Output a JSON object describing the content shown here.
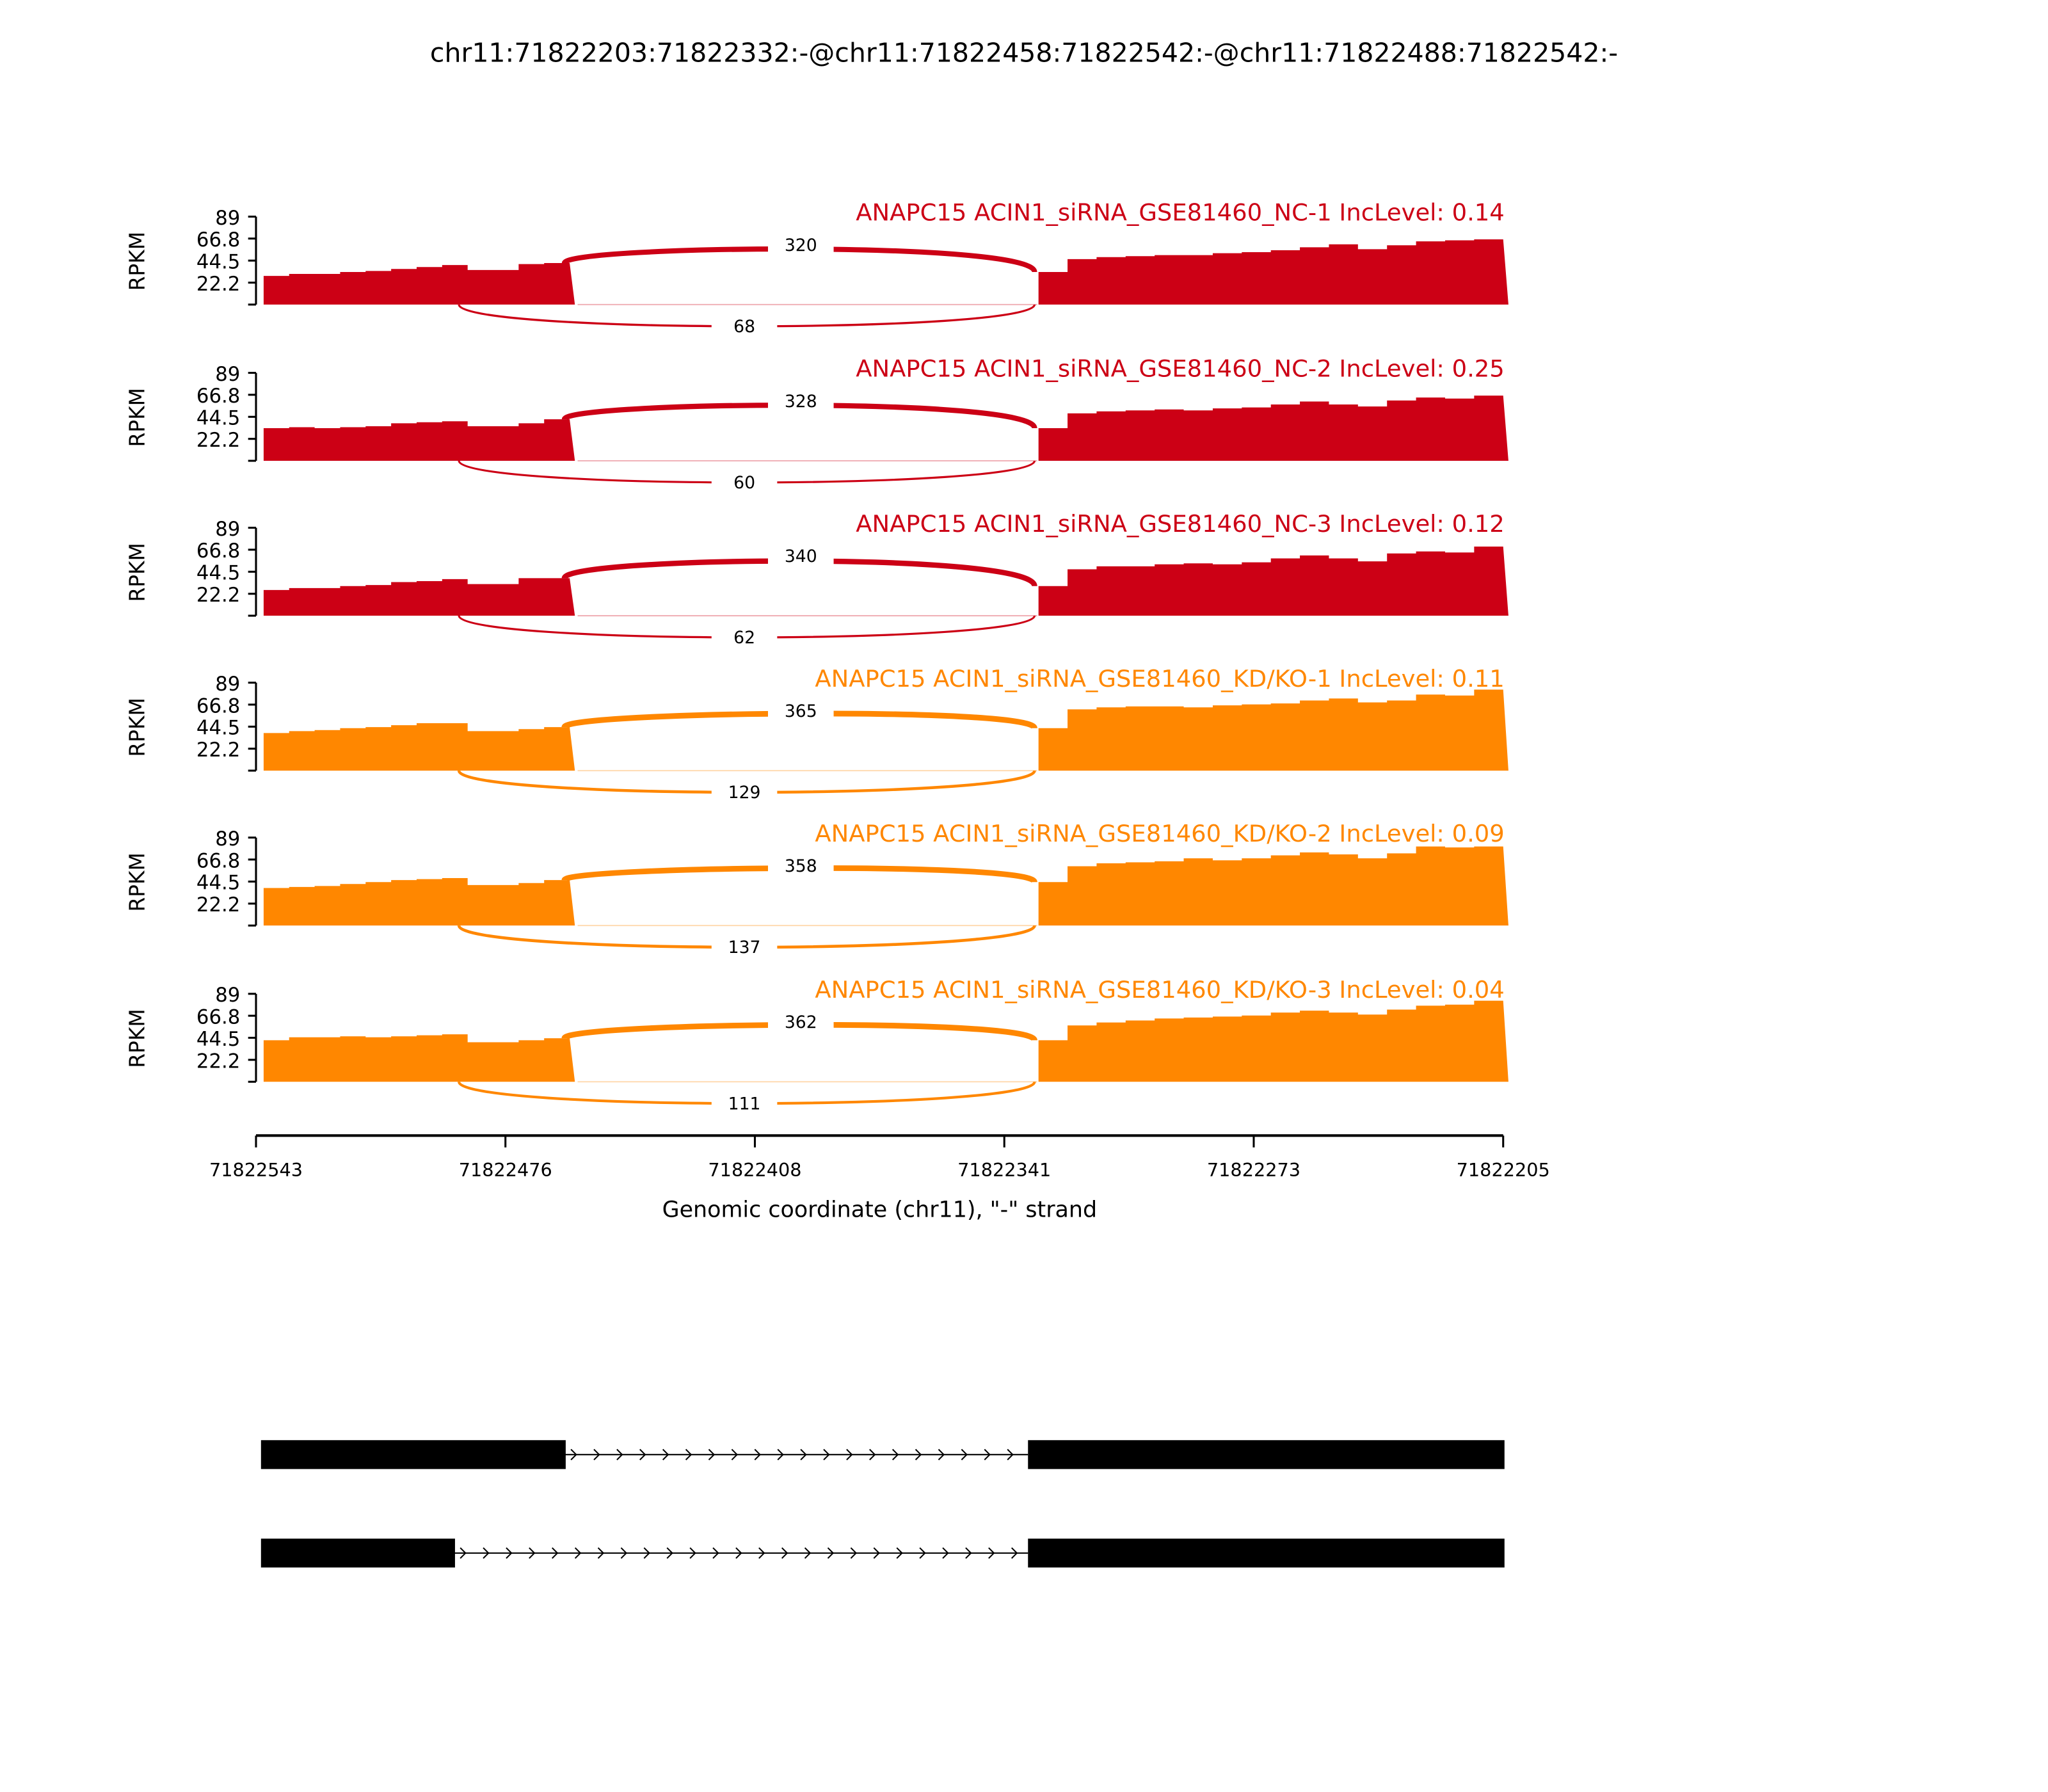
{
  "chart_data": {
    "type": "area",
    "title": "chr11:71822203:71822332:-@chr11:71822458:71822542:-@chr11:71822488:71822542:-",
    "xlabel": "Genomic coordinate (chr11), \"-\" strand",
    "ylabel": "RPKM",
    "xlim": [
      71822543,
      71822205
    ],
    "ylim": [
      0,
      89
    ],
    "yticks": [
      "22.2",
      "44.5",
      "66.8",
      "89"
    ],
    "xticks": [
      "71822543",
      "71822476",
      "71822408",
      "71822341",
      "71822273",
      "71822205"
    ],
    "exon1": [
      71822542,
      71822458
    ],
    "exon1_short_end": 71822488,
    "exon2": [
      71822332,
      71822205
    ],
    "samples": [
      {
        "label": "ANAPC15 ACIN1_siRNA_GSE81460_NC-1 IncLevel: 0.14",
        "color": "#cc0015",
        "inclusion": "320",
        "skipping": "68",
        "exon1_cov": [
          29,
          31,
          31,
          33,
          34,
          36,
          38,
          40,
          35,
          35,
          41,
          42
        ],
        "exon2_cov": [
          33,
          46,
          48,
          49,
          50,
          50,
          52,
          53,
          55,
          58,
          61,
          56,
          60,
          64,
          65,
          66
        ]
      },
      {
        "label": "ANAPC15 ACIN1_siRNA_GSE81460_NC-2 IncLevel: 0.25",
        "color": "#cc0015",
        "inclusion": "328",
        "skipping": "60",
        "exon1_cov": [
          33,
          34,
          33,
          34,
          35,
          38,
          39,
          40,
          35,
          35,
          38,
          42
        ],
        "exon2_cov": [
          33,
          48,
          50,
          51,
          52,
          51,
          53,
          54,
          57,
          60,
          57,
          55,
          61,
          64,
          63,
          66
        ]
      },
      {
        "label": "ANAPC15 ACIN1_siRNA_GSE81460_NC-3 IncLevel: 0.12",
        "color": "#cc0015",
        "inclusion": "340",
        "skipping": "62",
        "exon1_cov": [
          26,
          28,
          28,
          30,
          31,
          34,
          35,
          37,
          32,
          32,
          38,
          38
        ],
        "exon2_cov": [
          30,
          47,
          50,
          50,
          52,
          53,
          52,
          54,
          58,
          61,
          58,
          55,
          63,
          65,
          64,
          70
        ]
      },
      {
        "label": "ANAPC15 ACIN1_siRNA_GSE81460_KD/KO-1 IncLevel: 0.11",
        "color": "#ff8700",
        "inclusion": "365",
        "skipping": "129",
        "exon1_cov": [
          38,
          40,
          41,
          43,
          44,
          46,
          48,
          48,
          40,
          40,
          42,
          44
        ],
        "exon2_cov": [
          43,
          62,
          64,
          65,
          65,
          64,
          66,
          67,
          68,
          71,
          73,
          69,
          71,
          77,
          76,
          82
        ]
      },
      {
        "label": "ANAPC15 ACIN1_siRNA_GSE81460_KD/KO-2 IncLevel: 0.09",
        "color": "#ff8700",
        "inclusion": "358",
        "skipping": "137",
        "exon1_cov": [
          38,
          39,
          40,
          42,
          44,
          46,
          47,
          48,
          41,
          41,
          43,
          46
        ],
        "exon2_cov": [
          44,
          60,
          63,
          64,
          65,
          68,
          66,
          68,
          71,
          74,
          72,
          68,
          73,
          80,
          79,
          80
        ]
      },
      {
        "label": "ANAPC15 ACIN1_siRNA_GSE81460_KD/KO-3 IncLevel: 0.04",
        "color": "#ff8700",
        "inclusion": "362",
        "skipping": "111",
        "exon1_cov": [
          42,
          45,
          45,
          46,
          45,
          46,
          47,
          48,
          40,
          40,
          42,
          44
        ],
        "exon2_cov": [
          42,
          57,
          60,
          62,
          64,
          65,
          66,
          67,
          70,
          72,
          70,
          68,
          73,
          77,
          78,
          82
        ]
      }
    ],
    "transcripts": [
      {
        "exons": [
          [
            71822542,
            71822458
          ],
          [
            71822332,
            71822205
          ]
        ]
      },
      {
        "exons": [
          [
            71822542,
            71822488
          ],
          [
            71822332,
            71822205
          ]
        ]
      }
    ]
  }
}
